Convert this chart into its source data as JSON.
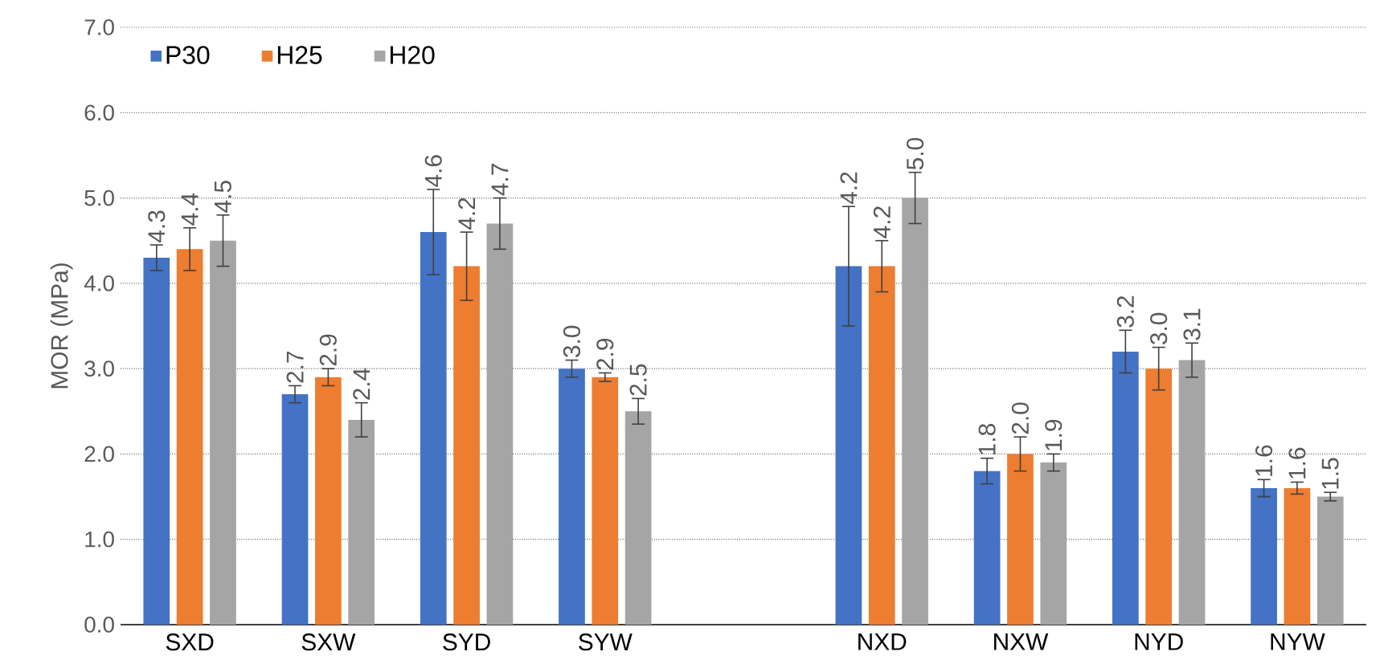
{
  "chart_data": {
    "type": "bar",
    "ylabel": "MOR (MPa)",
    "categories": [
      "SXD",
      "SXW",
      "SYD",
      "SYW",
      null,
      "NXD",
      "NXW",
      "NYD",
      "NYW"
    ],
    "series": [
      {
        "name": "P30",
        "color": "#4472c4",
        "values": [
          4.3,
          2.7,
          4.6,
          3.0,
          null,
          4.2,
          1.8,
          3.2,
          1.6
        ],
        "errors": [
          0.15,
          0.1,
          0.5,
          0.1,
          null,
          0.7,
          0.15,
          0.25,
          0.1
        ],
        "value_labels": [
          "4.3",
          "2.7",
          "4.6",
          "3.0",
          null,
          "4.2",
          "1.8",
          "3.2",
          "1.6"
        ]
      },
      {
        "name": "H25",
        "color": "#ed7d31",
        "values": [
          4.4,
          2.9,
          4.2,
          2.9,
          null,
          4.2,
          2.0,
          3.0,
          1.6
        ],
        "errors": [
          0.25,
          0.1,
          0.4,
          0.05,
          null,
          0.3,
          0.2,
          0.25,
          0.07
        ],
        "value_labels": [
          "4.4",
          "2.9",
          "4.2",
          "2.9",
          null,
          "4.2",
          "2.0",
          "3.0",
          "1.6"
        ]
      },
      {
        "name": "H20",
        "color": "#a5a5a5",
        "values": [
          4.5,
          2.4,
          4.7,
          2.5,
          null,
          5.0,
          1.9,
          3.1,
          1.5
        ],
        "errors": [
          0.3,
          0.2,
          0.3,
          0.15,
          null,
          0.3,
          0.1,
          0.2,
          0.05
        ],
        "value_labels": [
          "4.5",
          "2.4",
          "4.7",
          "2.5",
          null,
          "5.0",
          "1.9",
          "3.1",
          "1.5"
        ]
      }
    ],
    "ylim": [
      0,
      7
    ],
    "yticks": [
      {
        "value": 0,
        "label": "0.0"
      },
      {
        "value": 1,
        "label": "1.0"
      },
      {
        "value": 2,
        "label": "2.0"
      },
      {
        "value": 3,
        "label": "3.0"
      },
      {
        "value": 4,
        "label": "4.0"
      },
      {
        "value": 5,
        "label": "5.0"
      },
      {
        "value": 6,
        "label": "6.0"
      },
      {
        "value": 7,
        "label": "7.0"
      }
    ],
    "grid": "y",
    "legend": "top left"
  }
}
